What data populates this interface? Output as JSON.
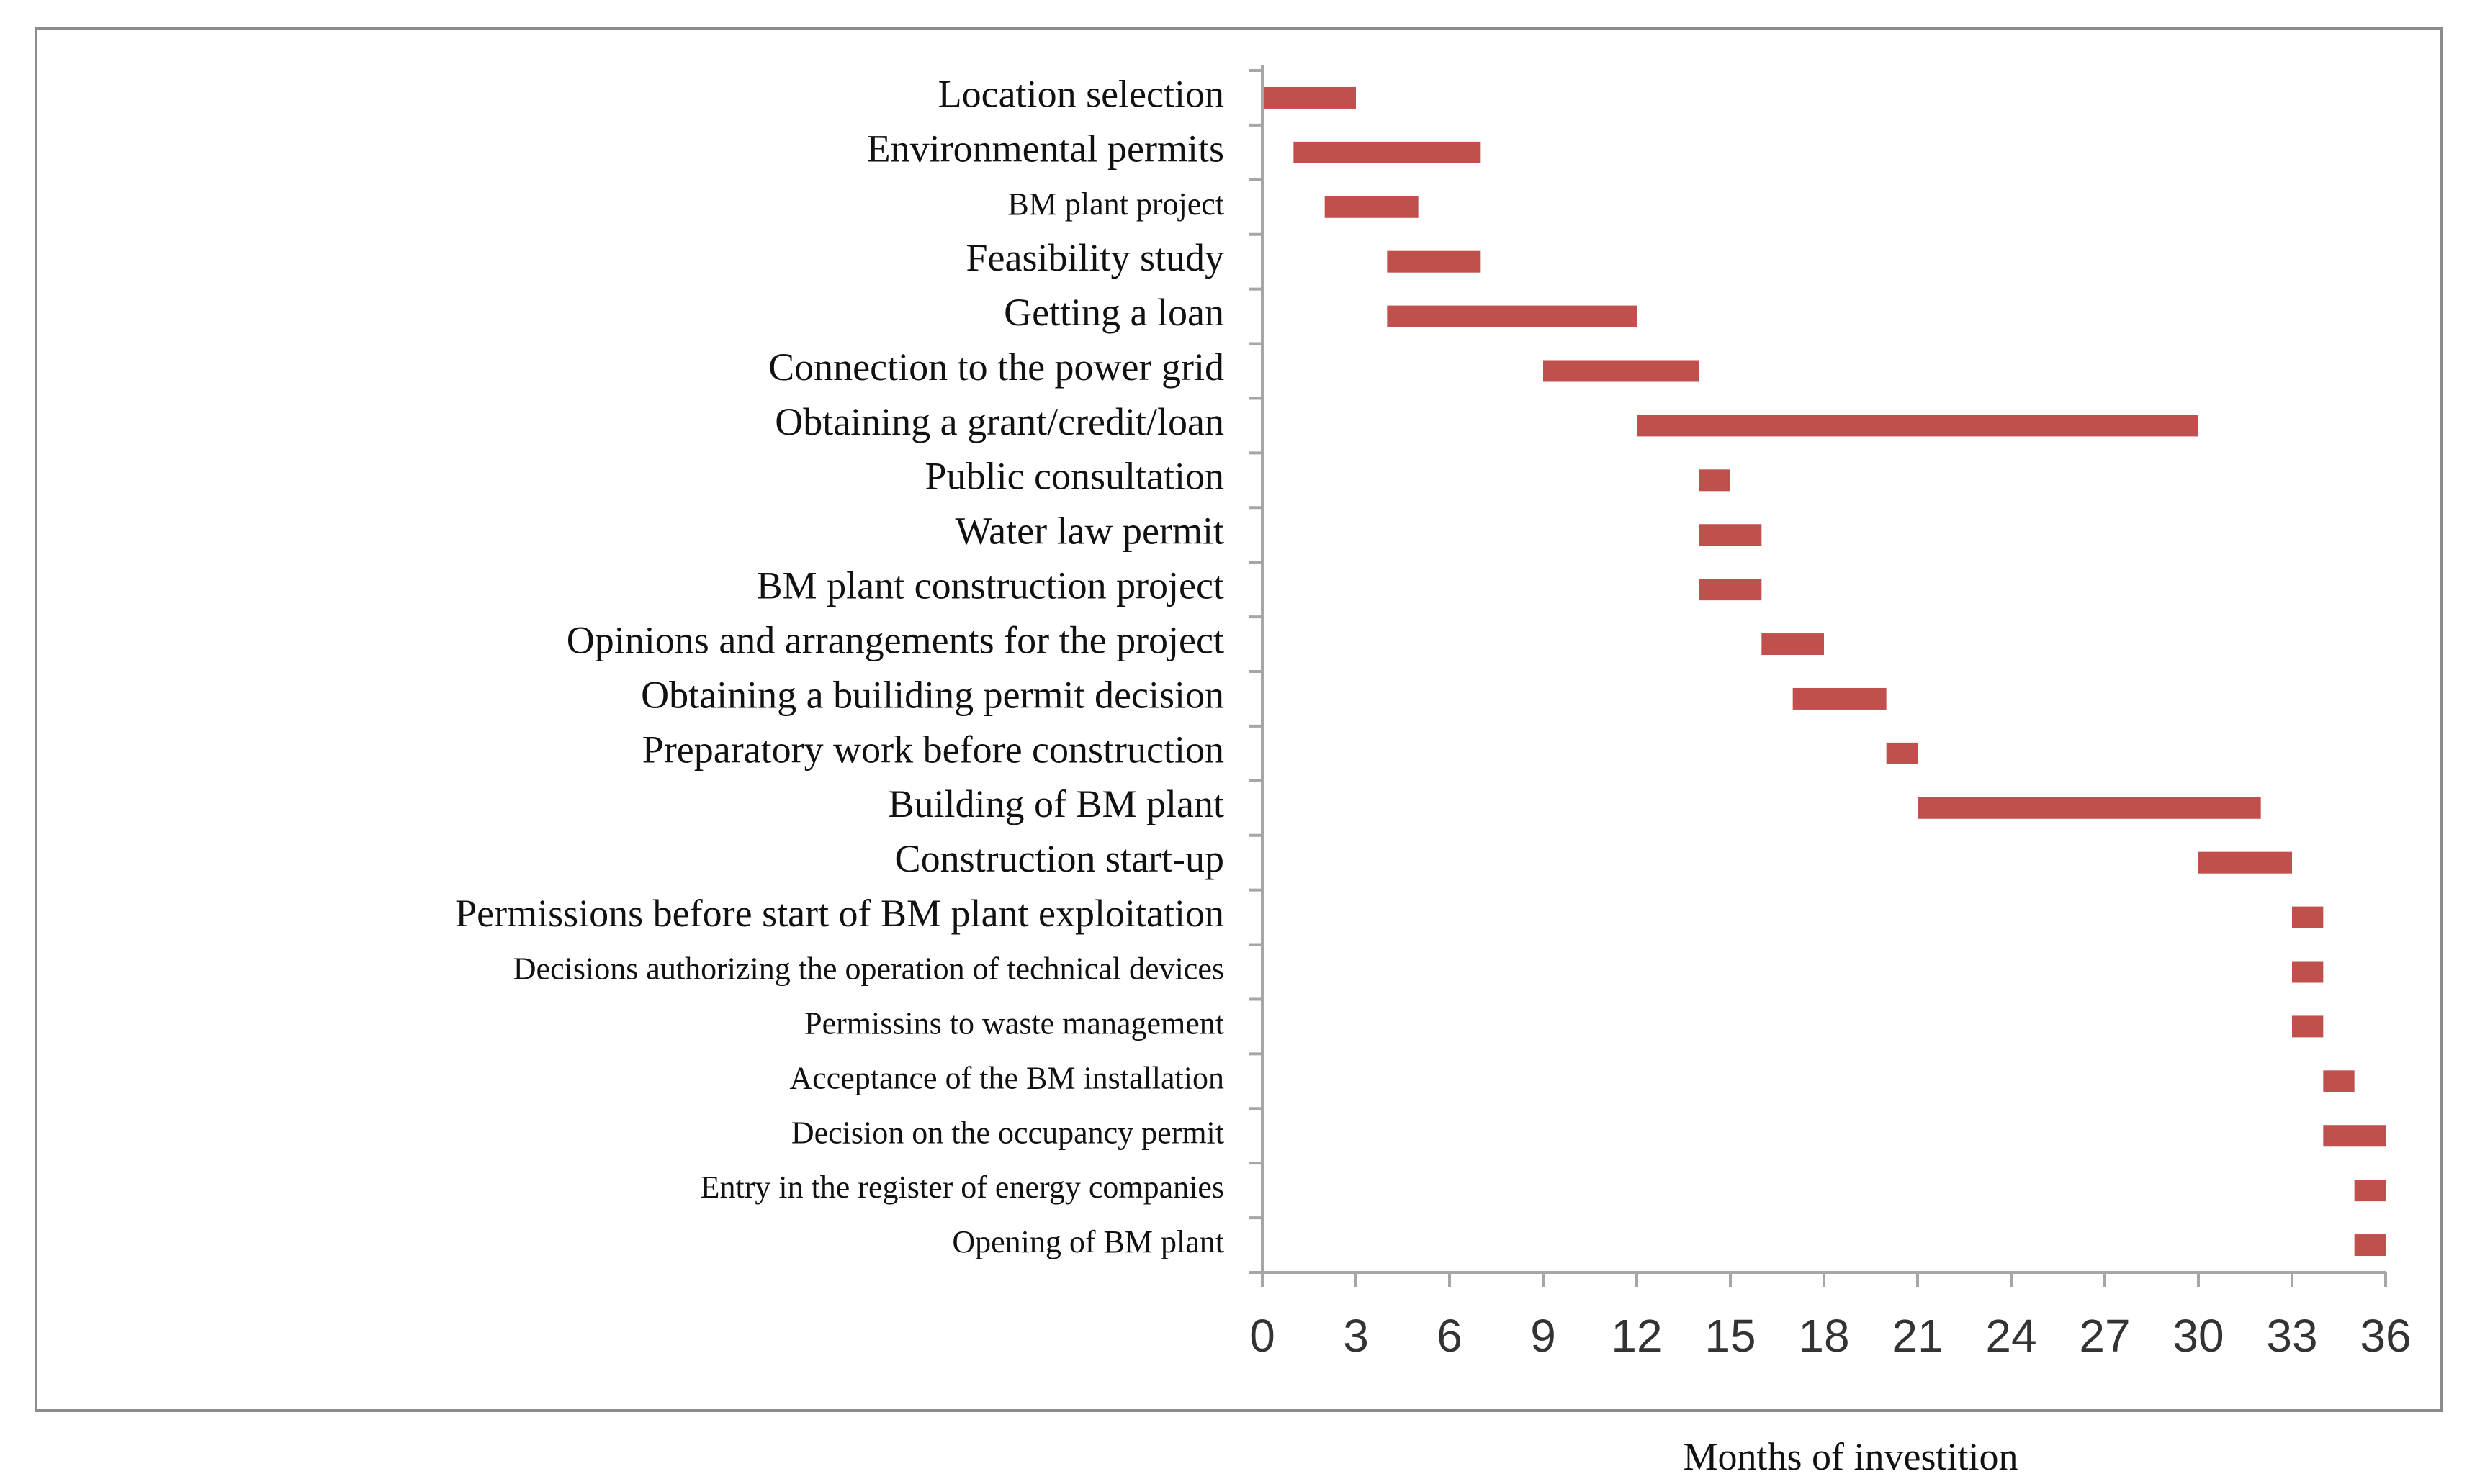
{
  "chart_data": {
    "type": "bar",
    "orientation": "horizontal",
    "subtype": "gantt",
    "title": "",
    "xlabel": "Months of investition",
    "ylabel": "",
    "xlim": [
      0,
      36
    ],
    "xticks": [
      0,
      3,
      6,
      9,
      12,
      15,
      18,
      21,
      24,
      27,
      30,
      33,
      36
    ],
    "bar_color": "#c0504d",
    "grid": false,
    "tasks": [
      {
        "label": "Location selection",
        "start": 0,
        "end": 3
      },
      {
        "label": "Environmental permits",
        "start": 1,
        "end": 7
      },
      {
        "label": "BM plant project",
        "start": 2,
        "end": 5
      },
      {
        "label": "Feasibility study",
        "start": 4,
        "end": 7
      },
      {
        "label": "Getting a loan",
        "start": 4,
        "end": 12
      },
      {
        "label": "Connection to the power grid",
        "start": 9,
        "end": 14
      },
      {
        "label": "Obtaining a grant/credit/loan",
        "start": 12,
        "end": 30
      },
      {
        "label": "Public consultation",
        "start": 14,
        "end": 15
      },
      {
        "label": "Water law permit",
        "start": 14,
        "end": 16
      },
      {
        "label": "BM plant construction project",
        "start": 14,
        "end": 16
      },
      {
        "label": "Opinions and arrangements for the project",
        "start": 16,
        "end": 18
      },
      {
        "label": "Obtaining a builiding permit decision",
        "start": 17,
        "end": 20
      },
      {
        "label": "Preparatory work before construction",
        "start": 20,
        "end": 21
      },
      {
        "label": "Building of BM plant",
        "start": 21,
        "end": 32
      },
      {
        "label": "Construction start-up",
        "start": 30,
        "end": 33
      },
      {
        "label": "Permissions before start of BM plant exploitation",
        "start": 33,
        "end": 34
      },
      {
        "label": "Decisions authorizing the operation of technical devices",
        "start": 33,
        "end": 34
      },
      {
        "label": "Permissins to waste management",
        "start": 33,
        "end": 34
      },
      {
        "label": "Acceptance of the BM installation",
        "start": 34,
        "end": 35
      },
      {
        "label": "Decision on the occupancy permit",
        "start": 34,
        "end": 36
      },
      {
        "label": "Entry in the register of energy companies",
        "start": 35,
        "end": 36
      },
      {
        "label": "Opening of BM plant",
        "start": 35,
        "end": 36
      }
    ]
  }
}
